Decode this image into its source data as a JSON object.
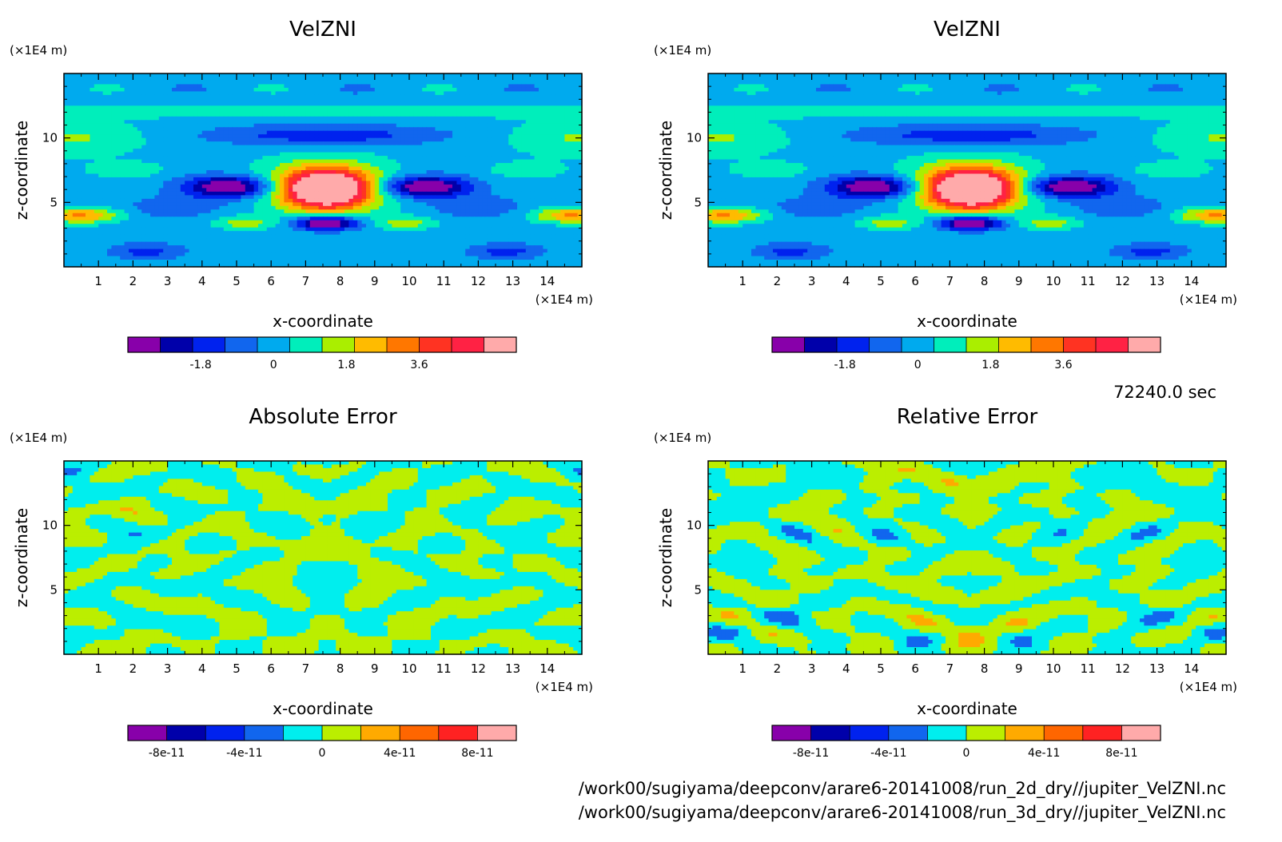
{
  "timestamp": "72240.0 sec",
  "paths": [
    "/work00/sugiyama/deepconv/arare6-20141008/run_2d_dry//jupiter_VelZNI.nc",
    "/work00/sugiyama/deepconv/arare6-20141008/run_3d_dry//jupiter_VelZNI.nc"
  ],
  "chart_data": [
    {
      "type": "heatmap",
      "title": "VelZNI",
      "xlabel": "x-coordinate",
      "ylabel": "z-coordinate",
      "x_unit": "(×1E4 m)",
      "y_unit": "(×1E4 m)",
      "xlim": [
        0,
        15
      ],
      "ylim": [
        0,
        15
      ],
      "x_ticks": [
        "1",
        "2",
        "3",
        "4",
        "5",
        "6",
        "7",
        "8",
        "9",
        "10",
        "11",
        "12",
        "13",
        "14"
      ],
      "y_ticks": [
        "5",
        "10"
      ],
      "colorbar": {
        "colors": [
          "#8800aa",
          "#0000aa",
          "#0022ee",
          "#1166ee",
          "#00aaee",
          "#00eebb",
          "#aaee00",
          "#ffbb00",
          "#ff7700",
          "#ff3322",
          "#ff2244",
          "#ffaaaa"
        ],
        "labels": [
          "-1.8",
          "0",
          "1.8",
          "3.6"
        ],
        "label_values": [
          -1.8,
          0,
          1.8,
          3.6
        ],
        "range": [
          -3.6,
          6.0
        ]
      }
    },
    {
      "type": "heatmap",
      "title": "VelZNI",
      "xlabel": "x-coordinate",
      "ylabel": "z-coordinate",
      "x_unit": "(×1E4 m)",
      "y_unit": "(×1E4 m)",
      "xlim": [
        0,
        15
      ],
      "ylim": [
        0,
        15
      ],
      "x_ticks": [
        "1",
        "2",
        "3",
        "4",
        "5",
        "6",
        "7",
        "8",
        "9",
        "10",
        "11",
        "12",
        "13",
        "14"
      ],
      "y_ticks": [
        "5",
        "10"
      ],
      "colorbar": {
        "colors": [
          "#8800aa",
          "#0000aa",
          "#0022ee",
          "#1166ee",
          "#00aaee",
          "#00eebb",
          "#aaee00",
          "#ffbb00",
          "#ff7700",
          "#ff3322",
          "#ff2244",
          "#ffaaaa"
        ],
        "labels": [
          "-1.8",
          "0",
          "1.8",
          "3.6"
        ],
        "label_values": [
          -1.8,
          0,
          1.8,
          3.6
        ],
        "range": [
          -3.6,
          6.0
        ]
      }
    },
    {
      "type": "heatmap",
      "title": "Absolute Error",
      "xlabel": "x-coordinate",
      "ylabel": "z-coordinate",
      "x_unit": "(×1E4 m)",
      "y_unit": "(×1E4 m)",
      "xlim": [
        0,
        15
      ],
      "ylim": [
        0,
        15
      ],
      "x_ticks": [
        "1",
        "2",
        "3",
        "4",
        "5",
        "6",
        "7",
        "8",
        "9",
        "10",
        "11",
        "12",
        "13",
        "14"
      ],
      "y_ticks": [
        "5",
        "10"
      ],
      "colorbar": {
        "colors": [
          "#8800aa",
          "#0000aa",
          "#0022ee",
          "#1166ee",
          "#00eeee",
          "#bbee00",
          "#ffaa00",
          "#ff6600",
          "#ff2222",
          "#ffaaaa"
        ],
        "labels": [
          "-8e-11",
          "-4e-11",
          "0",
          "4e-11",
          "8e-11"
        ],
        "label_values": [
          -8e-11,
          -4e-11,
          0,
          4e-11,
          8e-11
        ],
        "range": [
          -1e-10,
          1e-10
        ]
      }
    },
    {
      "type": "heatmap",
      "title": "Relative Error",
      "xlabel": "x-coordinate",
      "ylabel": "z-coordinate",
      "x_unit": "(×1E4 m)",
      "y_unit": "(×1E4 m)",
      "xlim": [
        0,
        15
      ],
      "ylim": [
        0,
        15
      ],
      "x_ticks": [
        "1",
        "2",
        "3",
        "4",
        "5",
        "6",
        "7",
        "8",
        "9",
        "10",
        "11",
        "12",
        "13",
        "14"
      ],
      "y_ticks": [
        "5",
        "10"
      ],
      "colorbar": {
        "colors": [
          "#8800aa",
          "#0000aa",
          "#0022ee",
          "#1166ee",
          "#00eeee",
          "#bbee00",
          "#ffaa00",
          "#ff6600",
          "#ff2222",
          "#ffaaaa"
        ],
        "labels": [
          "-8e-11",
          "-4e-11",
          "0",
          "4e-11",
          "8e-11"
        ],
        "label_values": [
          -8e-11,
          -4e-11,
          0,
          4e-11,
          8e-11
        ],
        "range": [
          -1e-10,
          1e-10
        ]
      }
    }
  ]
}
